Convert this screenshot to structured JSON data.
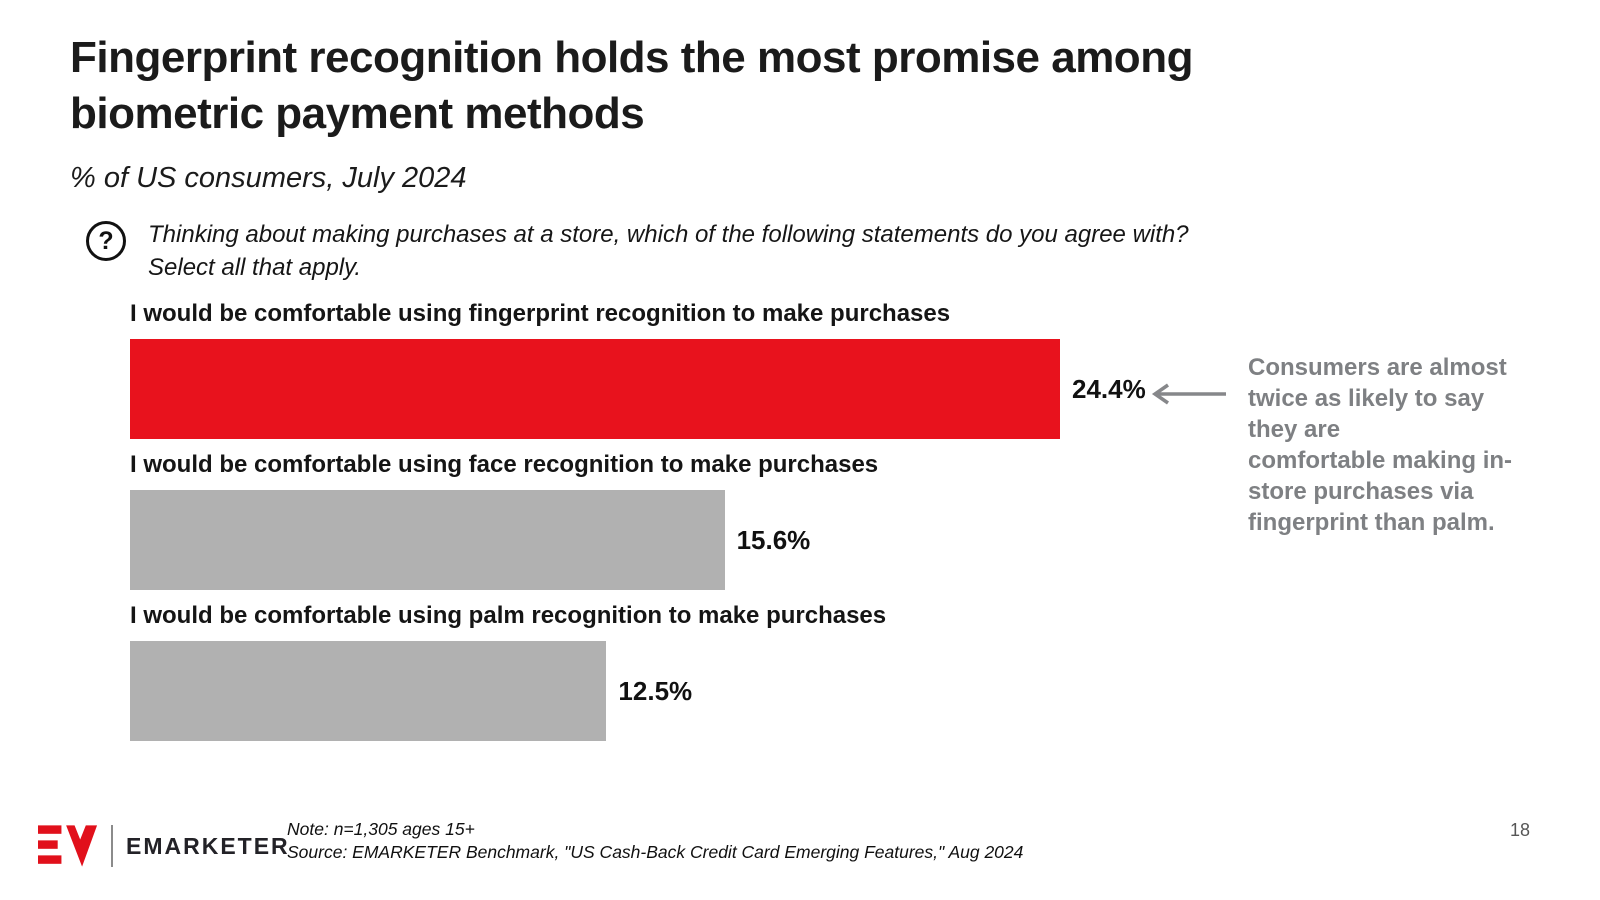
{
  "slide": {
    "title": "Fingerprint recognition holds the most promise among\nbiometric payment methods",
    "subtitle": "% of US consumers, July 2024",
    "question_icon": "question-mark-circle",
    "question_mark": "?",
    "question": "Thinking about making purchases at a store, which of the following statements do you agree with?\nSelect all that apply.",
    "page_number": "18"
  },
  "chart_data": {
    "type": "bar",
    "orientation": "horizontal",
    "title": "Fingerprint recognition holds the most promise among biometric payment methods",
    "subtitle": "% of US consumers, July 2024",
    "unit": "%",
    "categories": [
      "I would be comfortable using fingerprint recognition to make purchases",
      "I would be comfortable using face recognition to make purchases",
      "I would be comfortable using palm recognition to make purchases"
    ],
    "values": [
      24.4,
      15.6,
      12.5
    ],
    "value_labels": [
      "24.4%",
      "15.6%",
      "12.5%"
    ],
    "bar_colors": [
      "#e8121d",
      "#b1b1b1",
      "#b1b1b1"
    ],
    "xlim": [
      0,
      24.4
    ],
    "grid": false,
    "legend": false,
    "value_label_position": "outside-right"
  },
  "annotation": {
    "text": "Consumers are almost\ntwice as likely to say\nthey are\ncomfortable making in-\nstore purchases via\nfingerprint than palm.",
    "color": "#7e8083",
    "arrow_color": "#86878a",
    "arrow_direction": "left"
  },
  "footer": {
    "brand": "EMARKETER",
    "note": "Note: n=1,305 ages 15+",
    "source": "Source: EMARKETER Benchmark, \"US Cash-Back Credit Card Emerging Features,\" Aug 2024"
  },
  "colors": {
    "accent_red": "#e8121d",
    "bar_gray": "#b1b1b1",
    "annotation_gray": "#7e8083",
    "text_dark": "#1a1a1a"
  }
}
